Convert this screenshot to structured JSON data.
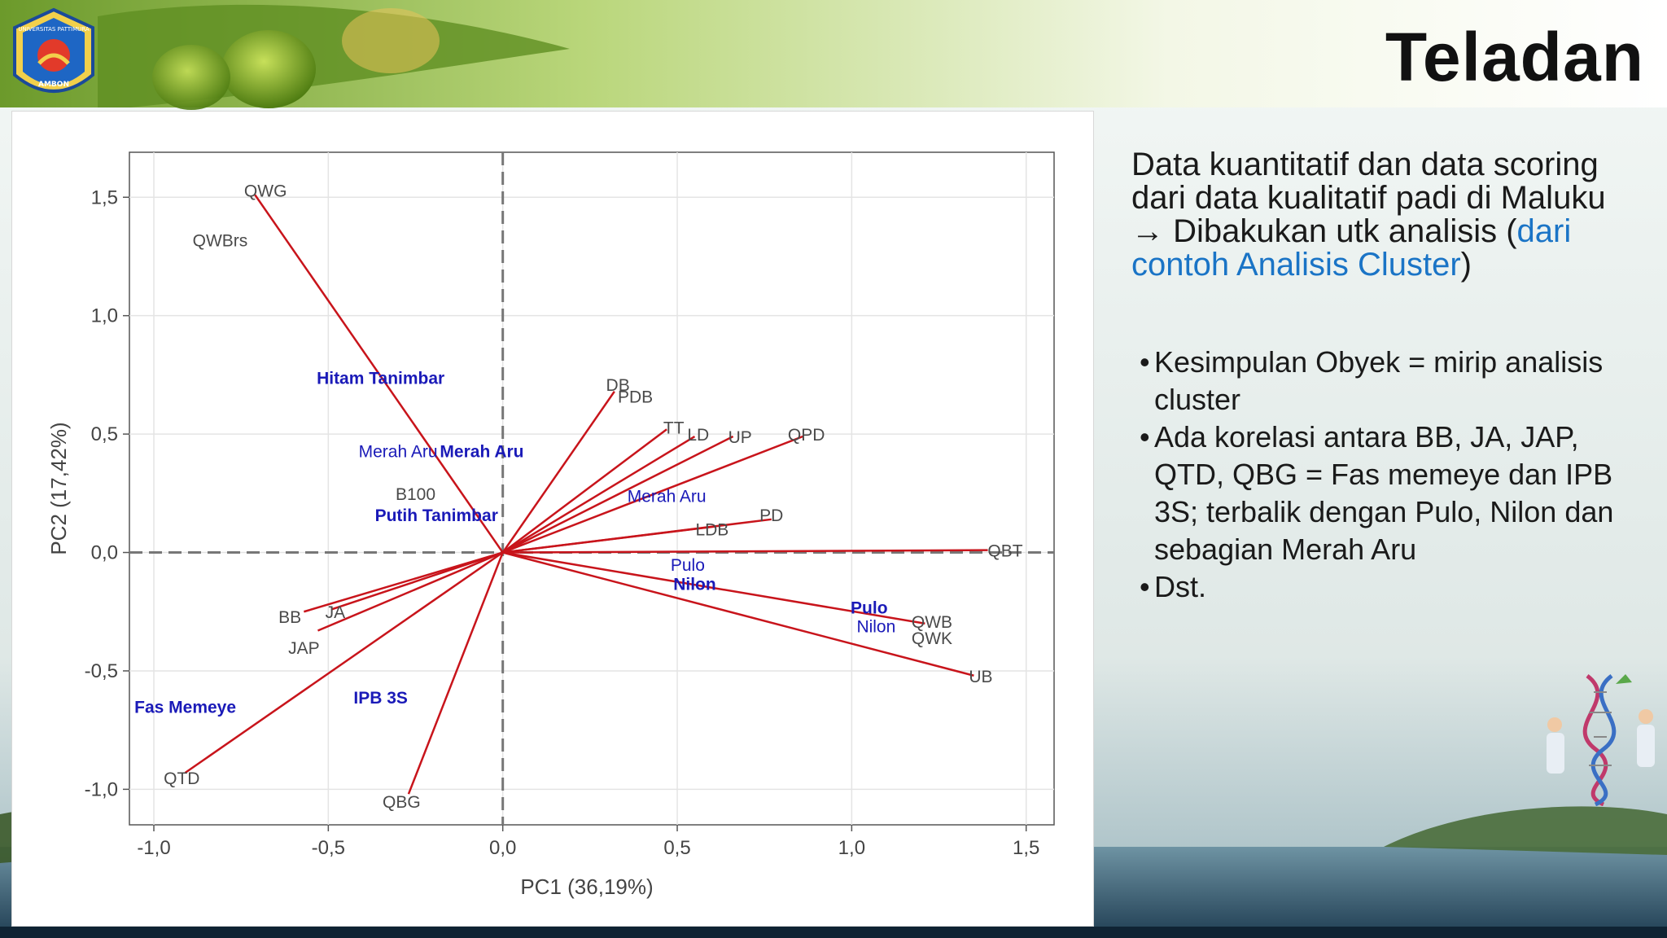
{
  "slide": {
    "title": "Teladan",
    "description": {
      "part1": "Data kuantitatif dan data scoring dari data kualitatif padi di Maluku",
      "arrow": "→",
      "part2": " Dibakukan utk analisis (",
      "link": "dari contoh Analisis Cluster",
      "part3": ")"
    },
    "bullets": [
      "Kesimpulan Obyek = mirip analisis cluster",
      "Ada korelasi antara BB, JA, JAP, QTD, QBG = Fas memeye dan IPB 3S; terbalik dengan Pulo, Nilon dan sebagian Merah Aru",
      "Dst."
    ],
    "logo": {
      "arc_text": "UNIVERSITAS PATTIMURA",
      "city": "AMBON"
    },
    "colors": {
      "accent": "#1a74c6",
      "vector": "#c8141b",
      "observation": "#1a1ab8",
      "title": "#111111"
    }
  },
  "chart_data": {
    "type": "biplot",
    "xlabel": "PC1 (36,19%)",
    "ylabel": "PC2 (17,42%)",
    "xlim": [
      -1.07,
      1.58
    ],
    "ylim": [
      -1.15,
      1.69
    ],
    "xticks": [
      -1.0,
      -0.5,
      0.0,
      0.5,
      1.0,
      1.5
    ],
    "yticks": [
      -1.0,
      -0.5,
      0.0,
      0.5,
      1.0,
      1.5
    ],
    "xtick_labels": [
      "-1,0",
      "-0,5",
      "0,0",
      "0,5",
      "1,0",
      "1,5"
    ],
    "ytick_labels": [
      "-1,0",
      "-0,5",
      "0,0",
      "0,5",
      "1,0",
      "1,5"
    ],
    "grid": true,
    "reference_lines": {
      "x": 0,
      "y": 0,
      "style": "dashed"
    },
    "vectors": [
      {
        "label": "QWG",
        "x": -0.71,
        "y": 1.51
      },
      {
        "label": "DB",
        "x": 0.32,
        "y": 0.68
      },
      {
        "label": "TT",
        "x": 0.47,
        "y": 0.52
      },
      {
        "label": "LD",
        "x": 0.55,
        "y": 0.49
      },
      {
        "label": "UP",
        "x": 0.66,
        "y": 0.49
      },
      {
        "label": "QPD",
        "x": 0.86,
        "y": 0.49
      },
      {
        "label": "PD",
        "x": 0.77,
        "y": 0.14
      },
      {
        "label": "LDB",
        "x": 0.61,
        "y": 0.11
      },
      {
        "label": "QBT",
        "x": 1.39,
        "y": 0.01
      },
      {
        "label": "QWB",
        "x": 1.21,
        "y": -0.3
      },
      {
        "label": "UB",
        "x": 1.35,
        "y": -0.52
      },
      {
        "label": "BB",
        "x": -0.57,
        "y": -0.25
      },
      {
        "label": "JA",
        "x": -0.49,
        "y": -0.24
      },
      {
        "label": "JAP",
        "x": -0.53,
        "y": -0.33
      },
      {
        "label": "QTD",
        "x": -0.91,
        "y": -0.93
      },
      {
        "label": "QBG",
        "x": -0.27,
        "y": -1.02
      }
    ],
    "variable_labels": [
      {
        "label": "QWG",
        "x": -0.68,
        "y": 1.53
      },
      {
        "label": "QWBrs",
        "x": -0.81,
        "y": 1.32
      },
      {
        "label": "DB",
        "x": 0.33,
        "y": 0.71
      },
      {
        "label": "PDB",
        "x": 0.38,
        "y": 0.66
      },
      {
        "label": "TT",
        "x": 0.49,
        "y": 0.53
      },
      {
        "label": "LD",
        "x": 0.56,
        "y": 0.5
      },
      {
        "label": "UP",
        "x": 0.68,
        "y": 0.49
      },
      {
        "label": "QPD",
        "x": 0.87,
        "y": 0.5
      },
      {
        "label": "B100",
        "x": -0.25,
        "y": 0.25
      },
      {
        "label": "PD",
        "x": 0.77,
        "y": 0.16
      },
      {
        "label": "LDB",
        "x": 0.6,
        "y": 0.1
      },
      {
        "label": "QBT",
        "x": 1.44,
        "y": 0.01
      },
      {
        "label": "QWB",
        "x": 1.23,
        "y": -0.29
      },
      {
        "label": "QWK",
        "x": 1.23,
        "y": -0.36
      },
      {
        "label": "UB",
        "x": 1.37,
        "y": -0.52
      },
      {
        "label": "BB",
        "x": -0.61,
        "y": -0.27
      },
      {
        "label": "JA",
        "x": -0.48,
        "y": -0.25
      },
      {
        "label": "JAP",
        "x": -0.57,
        "y": -0.4
      },
      {
        "label": "QTD",
        "x": -0.92,
        "y": -0.95
      },
      {
        "label": "QBG",
        "x": -0.29,
        "y": -1.05
      }
    ],
    "observations": [
      {
        "label": "Hitam Tanimbar",
        "x": -0.35,
        "y": 0.74,
        "bold": true
      },
      {
        "label": "Merah Aru",
        "x": -0.3,
        "y": 0.43,
        "bold": false
      },
      {
        "label": "Merah Aru",
        "x": -0.06,
        "y": 0.43,
        "bold": true
      },
      {
        "label": "Putih Tanimbar",
        "x": -0.19,
        "y": 0.16,
        "bold": true
      },
      {
        "label": "Merah Aru",
        "x": 0.47,
        "y": 0.24,
        "bold": false
      },
      {
        "label": "Pulo",
        "x": 0.53,
        "y": -0.05,
        "bold": false
      },
      {
        "label": "Nilon",
        "x": 0.55,
        "y": -0.13,
        "bold": true
      },
      {
        "label": "Pulo",
        "x": 1.05,
        "y": -0.23,
        "bold": true
      },
      {
        "label": "Nilon",
        "x": 1.07,
        "y": -0.31,
        "bold": false
      },
      {
        "label": "IPB 3S",
        "x": -0.35,
        "y": -0.61,
        "bold": true
      },
      {
        "label": "Fas Memeye",
        "x": -0.91,
        "y": -0.65,
        "bold": true
      }
    ]
  }
}
